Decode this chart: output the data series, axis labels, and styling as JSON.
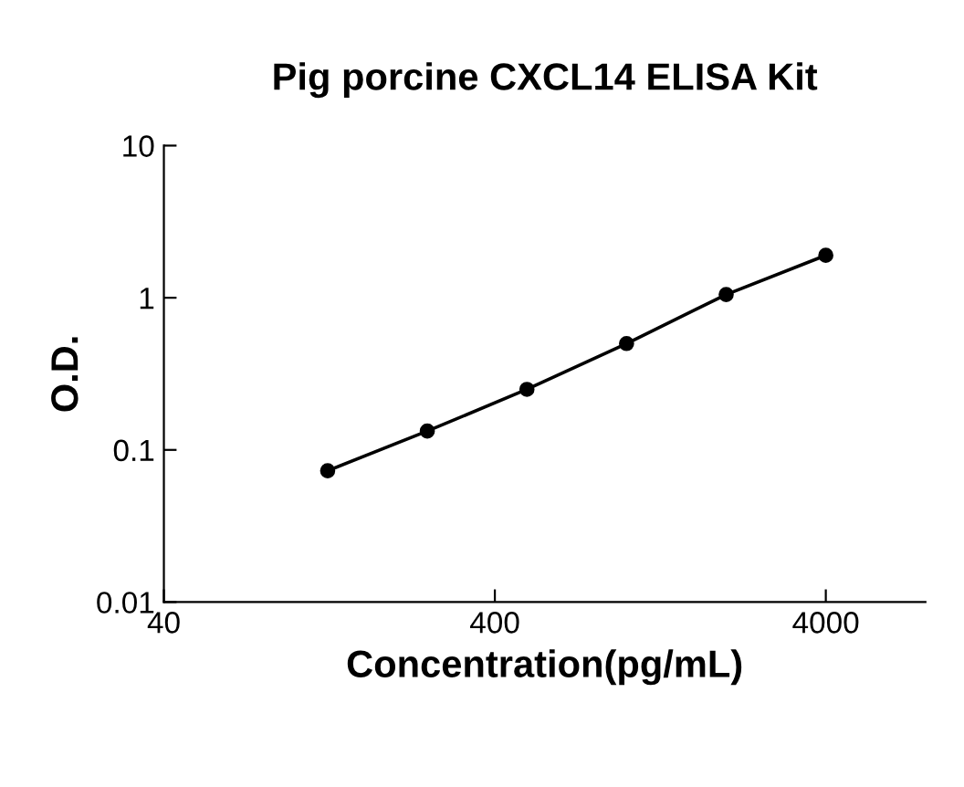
{
  "chart_data": {
    "type": "line",
    "title": "Pig porcine CXCL14 ELISA Kit",
    "xlabel": "Concentration(pg/mL)",
    "ylabel": "O.D.",
    "log": "xy",
    "x": [
      125,
      250,
      500,
      1000,
      2000,
      4000
    ],
    "series": [
      {
        "color": "#000000",
        "values": [
          0.073,
          0.133,
          0.25,
          0.5,
          1.05,
          1.9
        ]
      }
    ],
    "xlim": [
      40,
      8000
    ],
    "xticks": [
      40,
      400,
      4000
    ],
    "ylim": [
      0.01,
      10
    ],
    "yticks": [
      0.01,
      0.1,
      1,
      10
    ],
    "marker": "circle",
    "line_style": "solid",
    "grid": false,
    "legend": false
  }
}
